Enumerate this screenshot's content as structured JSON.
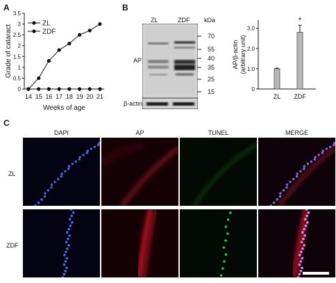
{
  "panels": {
    "a": "A",
    "b": "B",
    "c": "C"
  },
  "chart_data": [
    {
      "type": "line",
      "xlabel": "Weeks of age",
      "ylabel": "Grade of cataract",
      "x": [
        14,
        15,
        16,
        17,
        18,
        19,
        20,
        21
      ],
      "xticks": [
        "14",
        "15",
        "16",
        "17",
        "18",
        "19",
        "20",
        "21"
      ],
      "yticks": [
        "0",
        "0.5",
        "1",
        "1.5",
        "2",
        "2.5",
        "3",
        "3.5"
      ],
      "ylim": [
        0,
        3.5
      ],
      "legend_placement": "top-left",
      "series": [
        {
          "name": "ZL",
          "marker": "circle",
          "values": [
            0,
            0,
            0,
            0,
            0,
            0,
            0,
            0
          ]
        },
        {
          "name": "ZDF",
          "marker": "circle",
          "values": [
            0,
            0.5,
            1.3,
            1.8,
            2.1,
            2.5,
            2.7,
            3.0
          ]
        }
      ]
    },
    {
      "type": "bar",
      "categories": [
        "ZL",
        "ZDF"
      ],
      "values": [
        1.0,
        2.8
      ],
      "errors": [
        0.03,
        0.35
      ],
      "ylabel_line1": "AP/β-actin",
      "ylabel_line2": "(arbitrary unit)",
      "yticks": [
        "0",
        "1.0",
        "2.0",
        "3.0"
      ],
      "ylim": [
        0,
        3.4
      ],
      "annotation": "*"
    }
  ],
  "blot": {
    "lanes": [
      "ZL",
      "ZDF"
    ],
    "kda_label": "kDa",
    "markers": [
      "70",
      "55",
      "40",
      "35",
      "25",
      "15"
    ],
    "band_label": "AP",
    "loading_label": "β-actin"
  },
  "micrographs": {
    "columns": [
      "DAPI",
      "AP",
      "TUNEL",
      "MERGE"
    ],
    "rows": [
      "ZL",
      "ZDF"
    ]
  }
}
